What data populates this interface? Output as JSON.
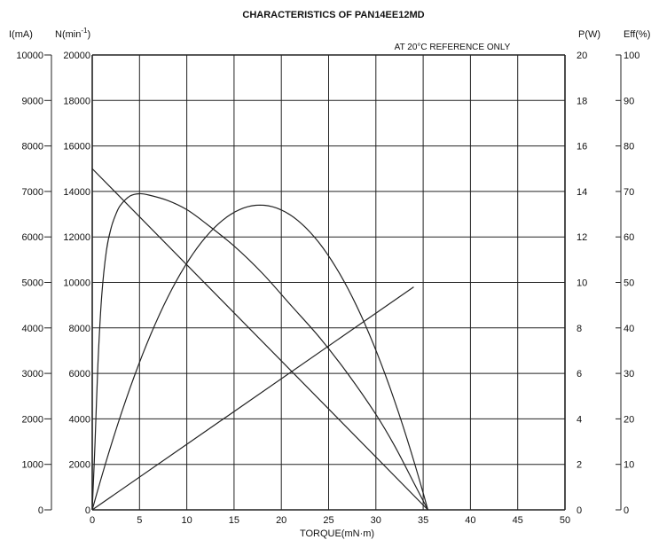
{
  "chart_data": {
    "type": "line",
    "title": "CHARACTERISTICS OF PAN14EE12MD",
    "note": "AT 20°C REFERENCE ONLY",
    "xlabel": "TORQUE(mN·m)",
    "xlim": [
      0,
      50
    ],
    "x_ticks": [
      "0",
      "5",
      "10",
      "15",
      "20",
      "25",
      "30",
      "35",
      "40",
      "45",
      "50"
    ],
    "axes": {
      "current": {
        "label": "I(mA)",
        "lim": [
          0,
          10000
        ],
        "ticks": [
          "0",
          "1000",
          "2000",
          "3000",
          "4000",
          "5000",
          "6000",
          "7000",
          "8000",
          "9000",
          "10000"
        ]
      },
      "speed": {
        "label_base": "N(min",
        "label_exp": "-1",
        "label_close": ")",
        "lim": [
          0,
          20000
        ],
        "ticks": [
          "0",
          "2000",
          "4000",
          "6000",
          "8000",
          "10000",
          "12000",
          "14000",
          "16000",
          "18000",
          "20000"
        ]
      },
      "power": {
        "label": "P(W)",
        "lim": [
          0,
          20
        ],
        "ticks": [
          "0",
          "2",
          "4",
          "6",
          "8",
          "10",
          "12",
          "14",
          "16",
          "18",
          "20"
        ]
      },
      "efficiency": {
        "label": "Eff(%)",
        "lim": [
          0,
          100
        ],
        "ticks": [
          "0",
          "10",
          "20",
          "30",
          "40",
          "50",
          "60",
          "70",
          "80",
          "90",
          "100"
        ]
      }
    },
    "grid": true,
    "series": [
      {
        "axis": "speed",
        "kind": "line",
        "x": [
          0,
          35.5
        ],
        "values": [
          15000,
          0
        ]
      },
      {
        "axis": "current",
        "kind": "line",
        "x": [
          0,
          34
        ],
        "values": [
          0,
          4900
        ]
      },
      {
        "axis": "power",
        "kind": "parabola",
        "x_max": 35.5,
        "peak_x": 17.75,
        "peak": 13.4
      },
      {
        "axis": "efficiency",
        "kind": "points",
        "x": [
          0,
          0.3,
          0.6,
          1,
          1.5,
          2,
          2.5,
          3,
          4,
          5,
          6,
          8,
          10,
          12,
          15,
          18,
          21,
          24,
          27,
          30,
          32,
          34,
          35,
          35.5
        ],
        "values": [
          0,
          15,
          32,
          47,
          57,
          62,
          65,
          67,
          69,
          69.5,
          69.2,
          68,
          66,
          63,
          58,
          52,
          45,
          38,
          30,
          21,
          14,
          6,
          2,
          0
        ]
      }
    ]
  }
}
